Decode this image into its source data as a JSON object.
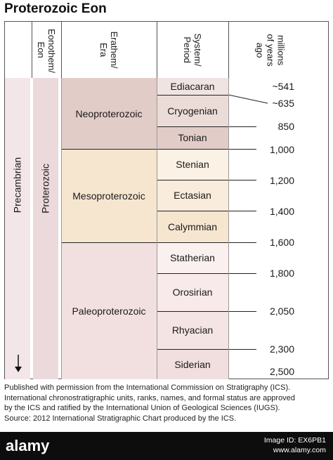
{
  "title": "Proterozoic Eon",
  "headers": {
    "eonothem": [
      "Eonothem/",
      "Eon"
    ],
    "erathem": [
      "Erathem/",
      "Era"
    ],
    "system": [
      "System/",
      "Period"
    ],
    "age": [
      "millions",
      "of years",
      "ago"
    ]
  },
  "eonothem_label": "Proterozoic",
  "precambrian_label": "Precambrian",
  "eras": [
    {
      "name": "Neoproterozoic",
      "color": "#e2ccc8"
    },
    {
      "name": "Mesoproterozoic",
      "color": "#f6e6d0"
    },
    {
      "name": "Paleoproterozoic",
      "color": "#f2e0e0"
    }
  ],
  "periods": [
    {
      "name": "Ediacaran",
      "color": "#f0e4e2"
    },
    {
      "name": "Cryogenian",
      "color": "#ecdcd8"
    },
    {
      "name": "Tonian",
      "color": "#e2ccc8"
    },
    {
      "name": "Stenian",
      "color": "#fbf1e4"
    },
    {
      "name": "Ectasian",
      "color": "#f9ecdc"
    },
    {
      "name": "Calymmian",
      "color": "#f6e6d0"
    },
    {
      "name": "Statherian",
      "color": "#fbf0f0"
    },
    {
      "name": "Orosirian",
      "color": "#f8eaea"
    },
    {
      "name": "Rhyacian",
      "color": "#f5e4e4"
    },
    {
      "name": "Siderian",
      "color": "#f1dede"
    }
  ],
  "ages": [
    "~541",
    "~635",
    "850",
    "1,000",
    "1,200",
    "1,400",
    "1,600",
    "1,800",
    "2,050",
    "2,300",
    "2,500"
  ],
  "colors": {
    "precambrian": "#f3e6e8",
    "proterozoic": "#ecd9dc"
  },
  "footer": {
    "line1": "Published with permission from the International Commission on Stratigraphy (ICS).",
    "line2": "International chronostratigraphic units, ranks, names, and formal status are approved",
    "line3": "by the ICS and ratified by the International Union of Geological Sciences (IUGS).",
    "line4": "Source: 2012 International Stratigraphic Chart produced by the ICS."
  },
  "watermark": {
    "logo": "alamy",
    "line1": "Image ID: EX6PB1",
    "line2": "www.alamy.com"
  }
}
